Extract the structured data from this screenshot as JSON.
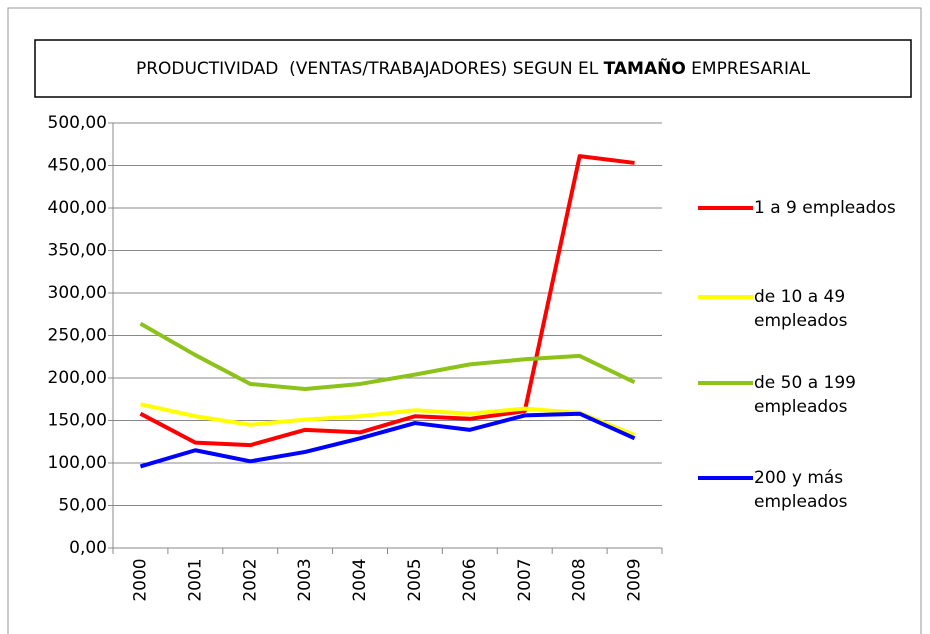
{
  "chart_data": {
    "type": "line",
    "title_parts": [
      "PRODUCTIVIDAD  (VENTAS/TRABAJADORES) SEGUN EL ",
      "TAMAÑO",
      " EMPRESARIAL"
    ],
    "categories": [
      "2000",
      "2001",
      "2002",
      "2003",
      "2004",
      "2005",
      "2006",
      "2007",
      "2008",
      "2009"
    ],
    "series": [
      {
        "name": "1 a 9 empleados",
        "color": "#ff0000",
        "values": [
          158,
          124,
          121,
          139,
          136,
          155,
          152,
          161,
          461,
          453
        ]
      },
      {
        "name": "de 10 a 49 empleados",
        "color": "#ffff00",
        "values": [
          169,
          155,
          145,
          151,
          155,
          162,
          158,
          164,
          159,
          133
        ]
      },
      {
        "name": "de 50 a 199 empleados",
        "color": "#8cc21a",
        "values": [
          264,
          227,
          193,
          187,
          193,
          204,
          216,
          222,
          226,
          195
        ]
      },
      {
        "name": "200 y más empleados",
        "color": "#0000ff",
        "values": [
          96,
          115,
          102,
          113,
          129,
          147,
          139,
          156,
          158,
          129
        ]
      }
    ],
    "ylim": [
      0,
      500
    ],
    "yticks": [
      {
        "value": 0,
        "label": "0,00"
      },
      {
        "value": 50,
        "label": "50,00"
      },
      {
        "value": 100,
        "label": "100,00"
      },
      {
        "value": 150,
        "label": "150,00"
      },
      {
        "value": 200,
        "label": "200,00"
      },
      {
        "value": 250,
        "label": "250,00"
      },
      {
        "value": 300,
        "label": "300,00"
      },
      {
        "value": 350,
        "label": "350,00"
      },
      {
        "value": 400,
        "label": "400,00"
      },
      {
        "value": 450,
        "label": "450,00"
      },
      {
        "value": 500,
        "label": "500,00"
      }
    ],
    "grid": true
  }
}
